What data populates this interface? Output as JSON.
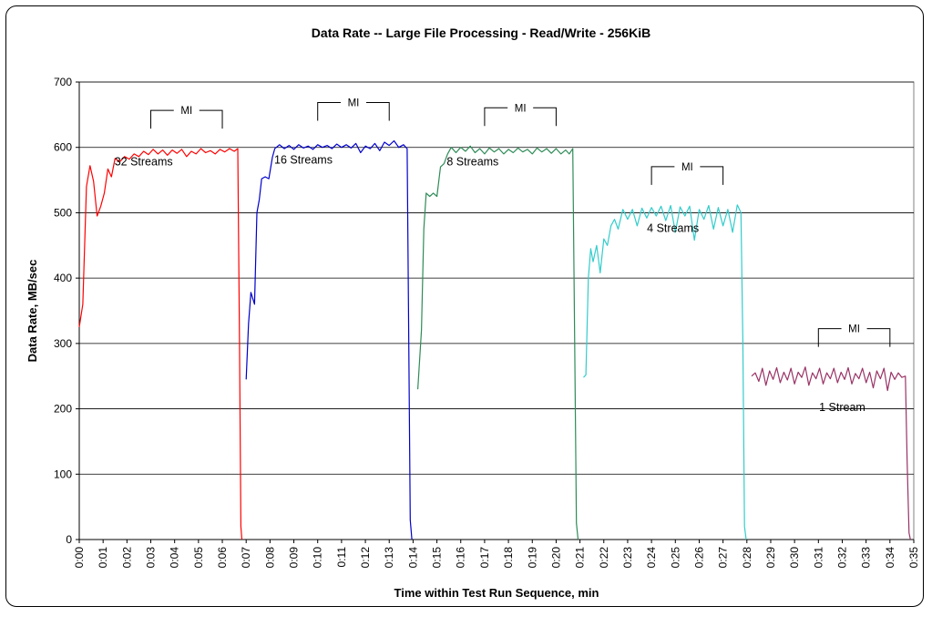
{
  "chart_data": {
    "type": "line",
    "title": "Data Rate -- Large File Processing - Read/Write - 256KiB",
    "xlabel": "Time within Test Run Sequence, min",
    "ylabel": "Data Rate, MB/sec",
    "ylim": [
      0,
      700
    ],
    "yticks": [
      "0",
      "100",
      "200",
      "300",
      "400",
      "500",
      "600",
      "700"
    ],
    "xlim": [
      0,
      35
    ],
    "xticks": [
      "0:00",
      "0:01",
      "0:02",
      "0:03",
      "0:04",
      "0:05",
      "0:06",
      "0:07",
      "0:08",
      "0:09",
      "0:10",
      "0:11",
      "0:12",
      "0:13",
      "0:14",
      "0:15",
      "0:16",
      "0:17",
      "0:18",
      "0:19",
      "0:20",
      "0:21",
      "0:22",
      "0:23",
      "0:24",
      "0:25",
      "0:26",
      "0:27",
      "0:28",
      "0:29",
      "0:30",
      "0:31",
      "0:32",
      "0:33",
      "0:34",
      "0:35"
    ],
    "grid": "horizontal",
    "colors": {
      "32": "#ff0000",
      "16": "#0000cc",
      "8": "#2e8b57",
      "4": "#33cccc",
      "1": "#993366"
    },
    "series": [
      {
        "label": "32 Streams",
        "color": "#ff0000",
        "label_at": [
          2.7,
          578
        ],
        "mi": [
          3,
          6
        ],
        "points": [
          [
            0,
            325
          ],
          [
            0.15,
            360
          ],
          [
            0.3,
            540
          ],
          [
            0.45,
            572
          ],
          [
            0.6,
            548
          ],
          [
            0.75,
            495
          ],
          [
            0.9,
            510
          ],
          [
            1.05,
            530
          ],
          [
            1.2,
            567
          ],
          [
            1.35,
            555
          ],
          [
            1.5,
            583
          ],
          [
            1.7,
            578
          ],
          [
            1.9,
            586
          ],
          [
            2.1,
            582
          ],
          [
            2.3,
            590
          ],
          [
            2.5,
            586
          ],
          [
            2.7,
            594
          ],
          [
            2.9,
            589
          ],
          [
            3.1,
            597
          ],
          [
            3.3,
            590
          ],
          [
            3.5,
            596
          ],
          [
            3.7,
            588
          ],
          [
            3.9,
            596
          ],
          [
            4.1,
            591
          ],
          [
            4.3,
            597
          ],
          [
            4.5,
            586
          ],
          [
            4.7,
            594
          ],
          [
            4.9,
            590
          ],
          [
            5.1,
            598
          ],
          [
            5.3,
            592
          ],
          [
            5.5,
            595
          ],
          [
            5.7,
            590
          ],
          [
            5.9,
            597
          ],
          [
            6.1,
            593
          ],
          [
            6.3,
            598
          ],
          [
            6.5,
            594
          ],
          [
            6.65,
            598
          ],
          [
            6.72,
            300
          ],
          [
            6.78,
            20
          ],
          [
            6.82,
            0
          ]
        ]
      },
      {
        "label": "16 Streams",
        "color": "#0000cc",
        "label_at": [
          9.4,
          581
        ],
        "mi": [
          10,
          13
        ],
        "points": [
          [
            7.0,
            245
          ],
          [
            7.1,
            330
          ],
          [
            7.2,
            378
          ],
          [
            7.35,
            360
          ],
          [
            7.45,
            500
          ],
          [
            7.55,
            520
          ],
          [
            7.65,
            552
          ],
          [
            7.8,
            555
          ],
          [
            7.95,
            552
          ],
          [
            8.1,
            585
          ],
          [
            8.2,
            598
          ],
          [
            8.4,
            604
          ],
          [
            8.6,
            598
          ],
          [
            8.8,
            603
          ],
          [
            9.0,
            597
          ],
          [
            9.2,
            604
          ],
          [
            9.4,
            599
          ],
          [
            9.6,
            602
          ],
          [
            9.8,
            597
          ],
          [
            10.0,
            604
          ],
          [
            10.2,
            600
          ],
          [
            10.4,
            603
          ],
          [
            10.6,
            598
          ],
          [
            10.8,
            605
          ],
          [
            11.0,
            600
          ],
          [
            11.2,
            604
          ],
          [
            11.4,
            599
          ],
          [
            11.6,
            606
          ],
          [
            11.8,
            592
          ],
          [
            12.0,
            602
          ],
          [
            12.2,
            598
          ],
          [
            12.4,
            606
          ],
          [
            12.6,
            595
          ],
          [
            12.8,
            608
          ],
          [
            13.0,
            603
          ],
          [
            13.2,
            610
          ],
          [
            13.4,
            600
          ],
          [
            13.6,
            604
          ],
          [
            13.75,
            598
          ],
          [
            13.82,
            300
          ],
          [
            13.88,
            30
          ],
          [
            13.95,
            0
          ]
        ]
      },
      {
        "label": "8 Streams",
        "color": "#2e8b57",
        "label_at": [
          16.5,
          578
        ],
        "mi": [
          17,
          20
        ],
        "points": [
          [
            14.2,
            230
          ],
          [
            14.35,
            320
          ],
          [
            14.45,
            475
          ],
          [
            14.55,
            530
          ],
          [
            14.7,
            525
          ],
          [
            14.85,
            530
          ],
          [
            15.0,
            525
          ],
          [
            15.15,
            570
          ],
          [
            15.3,
            575
          ],
          [
            15.45,
            590
          ],
          [
            15.6,
            600
          ],
          [
            15.8,
            592
          ],
          [
            16.0,
            600
          ],
          [
            16.2,
            594
          ],
          [
            16.4,
            602
          ],
          [
            16.6,
            592
          ],
          [
            16.8,
            598
          ],
          [
            17.0,
            590
          ],
          [
            17.2,
            599
          ],
          [
            17.4,
            593
          ],
          [
            17.6,
            598
          ],
          [
            17.8,
            590
          ],
          [
            18.0,
            597
          ],
          [
            18.2,
            592
          ],
          [
            18.4,
            599
          ],
          [
            18.6,
            593
          ],
          [
            18.8,
            597
          ],
          [
            19.0,
            590
          ],
          [
            19.2,
            599
          ],
          [
            19.4,
            593
          ],
          [
            19.6,
            598
          ],
          [
            19.8,
            591
          ],
          [
            20.0,
            598
          ],
          [
            20.2,
            590
          ],
          [
            20.4,
            596
          ],
          [
            20.55,
            590
          ],
          [
            20.7,
            598
          ],
          [
            20.78,
            300
          ],
          [
            20.85,
            25
          ],
          [
            20.92,
            0
          ]
        ]
      },
      {
        "label": "4 Streams",
        "color": "#33cccc",
        "label_at": [
          24.9,
          476
        ],
        "mi": [
          24,
          27
        ],
        "points": [
          [
            21.15,
            248
          ],
          [
            21.25,
            252
          ],
          [
            21.35,
            400
          ],
          [
            21.45,
            445
          ],
          [
            21.55,
            425
          ],
          [
            21.7,
            450
          ],
          [
            21.85,
            408
          ],
          [
            22.0,
            460
          ],
          [
            22.15,
            450
          ],
          [
            22.3,
            480
          ],
          [
            22.45,
            490
          ],
          [
            22.6,
            475
          ],
          [
            22.8,
            505
          ],
          [
            23.0,
            490
          ],
          [
            23.2,
            505
          ],
          [
            23.4,
            480
          ],
          [
            23.6,
            507
          ],
          [
            23.8,
            492
          ],
          [
            24.0,
            508
          ],
          [
            24.2,
            495
          ],
          [
            24.4,
            510
          ],
          [
            24.6,
            488
          ],
          [
            24.8,
            511
          ],
          [
            25.0,
            470
          ],
          [
            25.2,
            509
          ],
          [
            25.4,
            495
          ],
          [
            25.6,
            510
          ],
          [
            25.8,
            458
          ],
          [
            26.0,
            505
          ],
          [
            26.2,
            490
          ],
          [
            26.4,
            511
          ],
          [
            26.6,
            475
          ],
          [
            26.8,
            508
          ],
          [
            27.0,
            480
          ],
          [
            27.2,
            505
          ],
          [
            27.4,
            470
          ],
          [
            27.6,
            512
          ],
          [
            27.75,
            500
          ],
          [
            27.83,
            300
          ],
          [
            27.9,
            20
          ],
          [
            27.97,
            0
          ]
        ]
      },
      {
        "label": "1 Stream",
        "color": "#993366",
        "label_at": [
          32.0,
          202
        ],
        "mi": [
          31,
          34
        ],
        "points": [
          [
            28.2,
            250
          ],
          [
            28.35,
            255
          ],
          [
            28.5,
            242
          ],
          [
            28.65,
            262
          ],
          [
            28.8,
            236
          ],
          [
            28.95,
            258
          ],
          [
            29.1,
            245
          ],
          [
            29.25,
            263
          ],
          [
            29.4,
            240
          ],
          [
            29.55,
            256
          ],
          [
            29.7,
            244
          ],
          [
            29.85,
            262
          ],
          [
            30.0,
            238
          ],
          [
            30.15,
            256
          ],
          [
            30.3,
            248
          ],
          [
            30.45,
            264
          ],
          [
            30.6,
            236
          ],
          [
            30.75,
            255
          ],
          [
            30.9,
            246
          ],
          [
            31.05,
            262
          ],
          [
            31.2,
            238
          ],
          [
            31.35,
            255
          ],
          [
            31.5,
            246
          ],
          [
            31.65,
            262
          ],
          [
            31.8,
            240
          ],
          [
            31.95,
            256
          ],
          [
            32.1,
            245
          ],
          [
            32.25,
            263
          ],
          [
            32.4,
            238
          ],
          [
            32.55,
            254
          ],
          [
            32.7,
            246
          ],
          [
            32.85,
            262
          ],
          [
            33.0,
            240
          ],
          [
            33.15,
            256
          ],
          [
            33.3,
            232
          ],
          [
            33.45,
            258
          ],
          [
            33.6,
            246
          ],
          [
            33.75,
            262
          ],
          [
            33.9,
            228
          ],
          [
            34.05,
            256
          ],
          [
            34.2,
            245
          ],
          [
            34.35,
            255
          ],
          [
            34.5,
            248
          ],
          [
            34.65,
            250
          ],
          [
            34.72,
            120
          ],
          [
            34.8,
            10
          ],
          [
            34.86,
            0
          ]
        ]
      }
    ]
  }
}
